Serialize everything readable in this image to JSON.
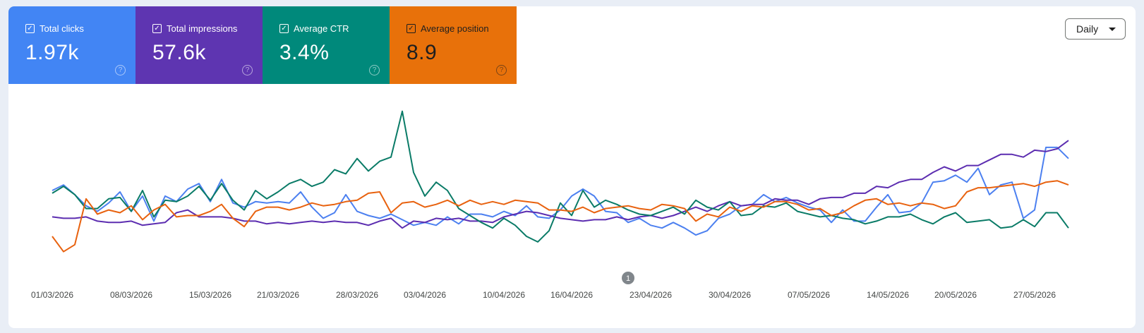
{
  "metrics": [
    {
      "label": "Total clicks",
      "value": "1.97k",
      "color": "#4285f4",
      "line_color": "#4c80f0",
      "text_color": "#ffffff"
    },
    {
      "label": "Total impressions",
      "value": "57.6k",
      "color": "#5e35b1",
      "line_color": "#5c2db0",
      "text_color": "#ffffff"
    },
    {
      "label": "Average CTR",
      "value": "3.4%",
      "color": "#00897b",
      "line_color": "#0a7b67",
      "text_color": "#ffffff"
    },
    {
      "label": "Average position",
      "value": "8.9",
      "color": "#e8710a",
      "line_color": "#e8620f",
      "text_color": "#1f1f1f"
    }
  ],
  "period_selector": {
    "value": "Daily"
  },
  "annotation": {
    "label": "1",
    "date": "21/04/2026"
  },
  "chart_data": {
    "type": "line",
    "x_start": "01/03/2026",
    "x_end": "30/05/2026",
    "x_tick_labels": [
      "01/03/2026",
      "08/03/2026",
      "15/03/2026",
      "21/03/2026",
      "28/03/2026",
      "03/04/2026",
      "10/04/2026",
      "16/04/2026",
      "23/04/2026",
      "30/04/2026",
      "07/05/2026",
      "14/05/2026",
      "20/05/2026",
      "27/05/2026"
    ],
    "xlabel": "",
    "ylabel": "",
    "y_axis_visible": false,
    "grid": false,
    "series": [
      {
        "name": "Total clicks",
        "values": [
          67,
          71,
          64,
          56,
          52,
          58,
          66,
          52,
          63,
          45,
          63,
          59,
          68,
          72,
          59,
          75,
          58,
          55,
          59,
          58,
          59,
          58,
          66,
          55,
          47,
          51,
          64,
          52,
          49,
          47,
          50,
          46,
          42,
          44,
          42,
          48,
          43,
          50,
          50,
          48,
          52,
          49,
          56,
          48,
          47,
          53,
          63,
          68,
          63,
          52,
          51,
          44,
          47,
          42,
          40,
          44,
          40,
          35,
          38,
          47,
          50,
          56,
          57,
          64,
          59,
          62,
          58,
          55,
          53,
          44,
          53,
          45,
          45,
          55,
          64,
          51,
          52,
          58,
          73,
          74,
          78,
          73,
          83,
          64,
          71,
          73,
          47,
          53,
          98,
          98,
          90
        ]
      },
      {
        "name": "Total impressions",
        "values": [
          48,
          47,
          47,
          48,
          45,
          44,
          44,
          45,
          42,
          43,
          44,
          51,
          53,
          48,
          48,
          48,
          47,
          45,
          45,
          43,
          44,
          43,
          44,
          45,
          44,
          45,
          44,
          44,
          42,
          45,
          47,
          40,
          45,
          44,
          47,
          46,
          47,
          45,
          45,
          44,
          48,
          50,
          52,
          51,
          49,
          47,
          46,
          45,
          46,
          46,
          48,
          46,
          48,
          49,
          47,
          49,
          52,
          55,
          52,
          56,
          59,
          56,
          57,
          57,
          61,
          60,
          60,
          57,
          61,
          62,
          62,
          65,
          65,
          70,
          69,
          73,
          75,
          75,
          80,
          84,
          81,
          85,
          85,
          89,
          93,
          93,
          91,
          96,
          95,
          97,
          103
        ]
      },
      {
        "name": "Average CTR",
        "values": [
          65,
          70,
          64,
          54,
          54,
          61,
          62,
          52,
          67,
          48,
          60,
          59,
          63,
          70,
          60,
          72,
          60,
          53,
          67,
          61,
          66,
          72,
          75,
          70,
          73,
          82,
          79,
          90,
          81,
          88,
          91,
          124,
          80,
          63,
          73,
          67,
          54,
          49,
          44,
          40,
          47,
          42,
          34,
          30,
          38,
          58,
          49,
          67,
          55,
          60,
          57,
          53,
          50,
          49,
          52,
          55,
          50,
          60,
          55,
          53,
          59,
          49,
          50,
          56,
          55,
          58,
          52,
          50,
          48,
          49,
          47,
          46,
          43,
          45,
          48,
          48,
          50,
          46,
          43,
          48,
          51,
          44,
          45,
          46,
          40,
          41,
          46,
          41,
          51,
          51,
          40
        ]
      },
      {
        "name": "Average position",
        "values": [
          34,
          23,
          28,
          61,
          50,
          53,
          51,
          56,
          46,
          53,
          57,
          48,
          49,
          49,
          52,
          57,
          47,
          41,
          52,
          55,
          55,
          53,
          55,
          58,
          56,
          57,
          59,
          60,
          65,
          66,
          51,
          58,
          59,
          55,
          57,
          60,
          56,
          60,
          57,
          59,
          57,
          60,
          59,
          58,
          53,
          53,
          52,
          55,
          51,
          54,
          55,
          56,
          54,
          53,
          57,
          56,
          54,
          45,
          50,
          48,
          55,
          52,
          56,
          55,
          59,
          59,
          57,
          53,
          54,
          49,
          51,
          56,
          60,
          61,
          57,
          58,
          56,
          58,
          57,
          54,
          56,
          66,
          69,
          69,
          70,
          71,
          72,
          70,
          73,
          74,
          71
        ]
      }
    ]
  }
}
